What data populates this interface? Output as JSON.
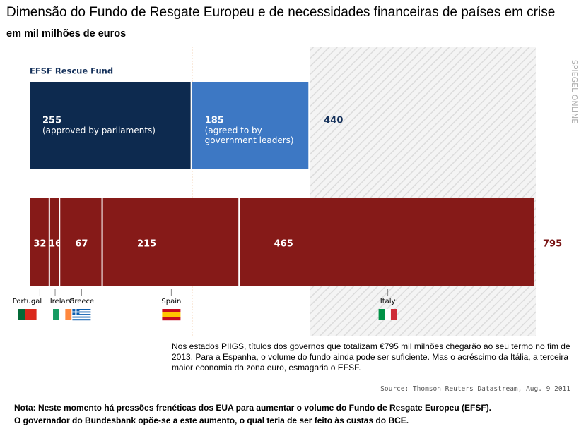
{
  "chart_data": {
    "type": "stacked-hbar",
    "title": "Dimensão do Fundo de Resgate Europeu e de necessidades financeiras de países em crise",
    "subtitle": "em mil milhões de euros",
    "bars": [
      {
        "label": "EFSF Rescue Fund",
        "total": 440,
        "total_color": "#14305a",
        "segments": [
          {
            "value": 255,
            "note": "(approved by parliaments)",
            "color": "#0d2a4f"
          },
          {
            "value": 185,
            "note": "(agreed to by government leaders)",
            "color": "#3d78c4"
          }
        ]
      },
      {
        "total": 795,
        "total_color": "#7a1616",
        "segments": [
          {
            "value": 32,
            "category": "Portugal",
            "color": "#861a18"
          },
          {
            "value": 16,
            "category": "Ireland",
            "color": "#861a18"
          },
          {
            "value": 67,
            "category": "Greece",
            "color": "#861a18"
          },
          {
            "value": 215,
            "category": "Spain",
            "color": "#861a18"
          },
          {
            "value": 465,
            "category": "Italy",
            "color": "#861a18"
          }
        ]
      }
    ],
    "annotation": "Nos estados PIIGS, títulos dos governos que totalizam €795 mil milhões chegarão ao seu termo no fim de 2013.  Para a Espanha, o volume do fundo ainda pode ser suficiente.  Mas o acréscimo da Itália, a terceira maior economia da zona euro, esmagaria o EFSF.",
    "source": "Source: Thomson Reuters Datastream, Aug. 9 2011",
    "watermark": "SPIEGEL ONLINE"
  },
  "note": [
    "Nota: Neste momento há pressões frenéticas dos EUA para aumentar o volume do Fundo de Resgate Europeu (EFSF).",
    "O governador do Bundesbank opõe-se a este aumento, o qual teria de ser feito às custas do BCE."
  ]
}
